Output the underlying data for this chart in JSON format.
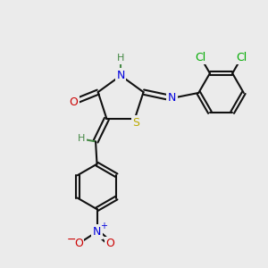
{
  "bg_color": "#ebebeb",
  "colors": {
    "O": "#cc0000",
    "N": "#0000dd",
    "S": "#bbaa00",
    "Cl": "#00aa00",
    "C": "#111111",
    "H": "#448844"
  },
  "lw": 1.5,
  "fs": 9.0,
  "fig_size": [
    3.0,
    3.0
  ],
  "dpi": 100,
  "xlim": [
    0,
    10
  ],
  "ylim": [
    0,
    10
  ]
}
